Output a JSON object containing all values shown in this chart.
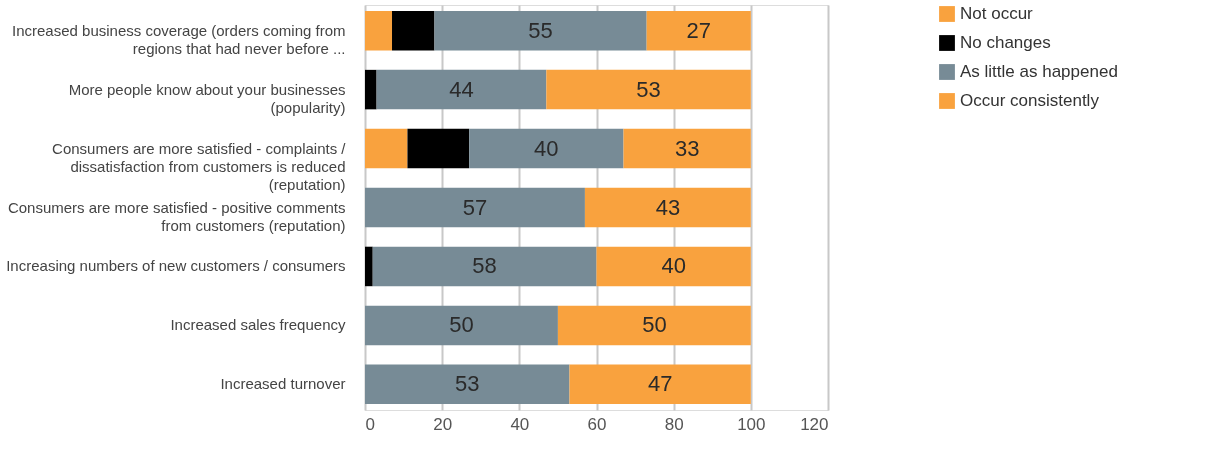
{
  "chart_data": {
    "type": "bar",
    "orientation": "horizontal",
    "stacked": true,
    "categories": [
      "Increased business coverage (orders coming from regions that had never before ...",
      "More people know about your businesses (popularity)",
      "Consumers are more satisfied - complaints / dissatisfaction from customers is reduced (reputation)",
      "Consumers are more satisfied - positive comments from customers (reputation)",
      "Increasing numbers of new customers / consumers",
      "Increased sales frequency",
      "Increased turnover"
    ],
    "series": [
      {
        "name": "Not occur",
        "color": "#f9a23e",
        "values": [
          7,
          0,
          11,
          0,
          0,
          0,
          0
        ],
        "value_labels": [
          null,
          null,
          null,
          null,
          null,
          null,
          null
        ]
      },
      {
        "name": "No changes",
        "color": "#000000",
        "values": [
          11,
          3,
          16,
          0,
          2,
          0,
          0
        ],
        "value_labels": [
          null,
          null,
          null,
          null,
          null,
          null,
          null
        ]
      },
      {
        "name": "As little as happened",
        "color": "#778b96",
        "values": [
          55,
          44,
          40,
          57,
          58,
          50,
          53
        ],
        "value_labels": [
          "55",
          "44",
          "40",
          "57",
          "58",
          "50",
          "53"
        ]
      },
      {
        "name": "Occur consistently",
        "color": "#f9a23e",
        "values": [
          27,
          53,
          33,
          43,
          40,
          50,
          47
        ],
        "value_labels": [
          "27",
          "53",
          "33",
          "43",
          "40",
          "50",
          "47"
        ]
      }
    ],
    "xlim": [
      0,
      120
    ],
    "xticks": [
      0,
      20,
      40,
      60,
      80,
      100,
      120
    ],
    "grid": "x",
    "legend": "right"
  }
}
